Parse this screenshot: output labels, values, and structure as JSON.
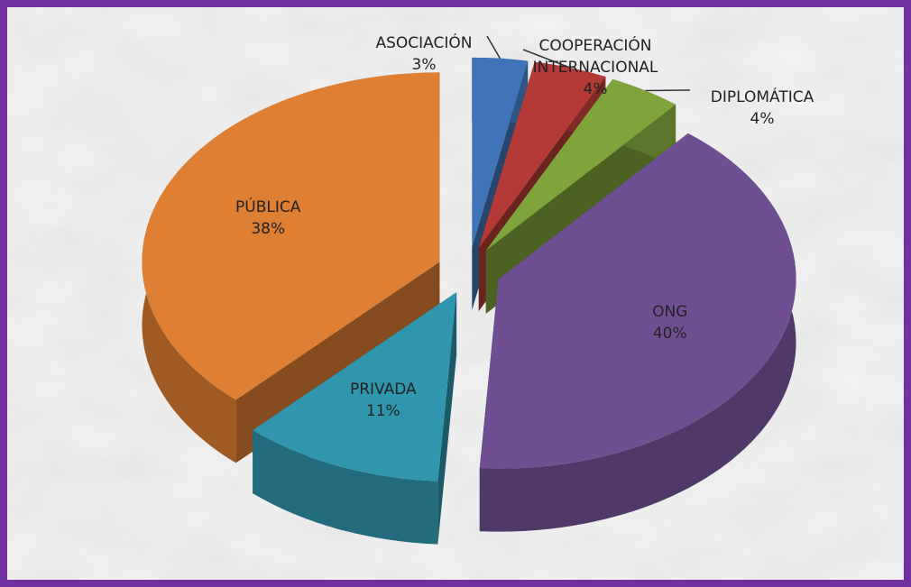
{
  "chart_data": {
    "type": "pie",
    "categories": [
      "ASOCIACIÓN",
      "COOPERACIÓN INTERNACIONAL",
      "DIPLOMÁTICA",
      "ONG",
      "PRIVADA",
      "PÚBLICA"
    ],
    "values": [
      3,
      4,
      4,
      40,
      11,
      38
    ],
    "value_labels": [
      "3%",
      "4%",
      "4%",
      "40%",
      "11%",
      "38%"
    ],
    "colors": [
      "#3f74b8",
      "#b33a36",
      "#7fa43b",
      "#6e4f91",
      "#2f96ad",
      "#de7f33"
    ]
  }
}
